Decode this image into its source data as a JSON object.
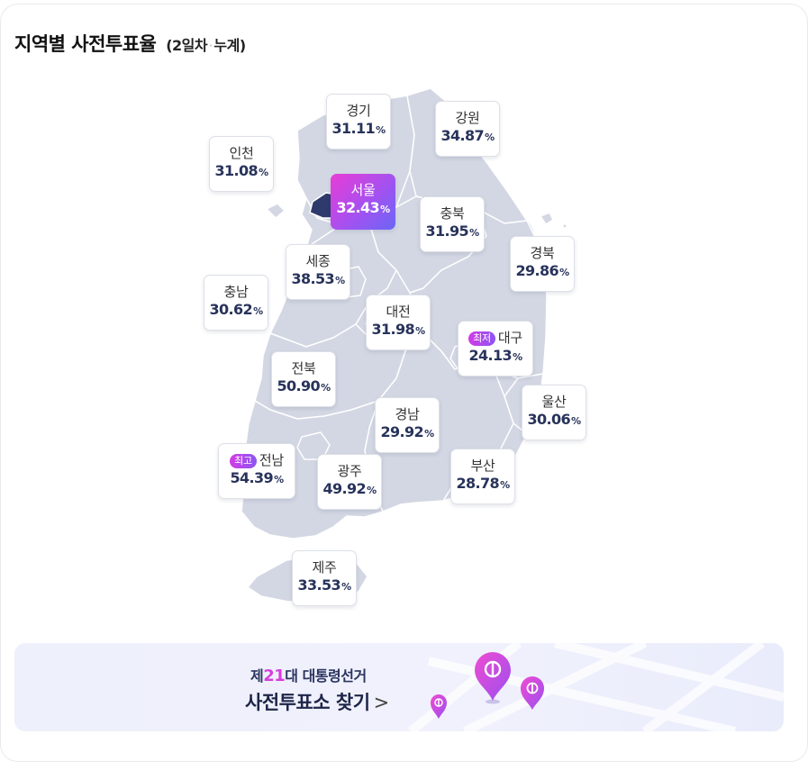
{
  "header": {
    "title": "지역별 사전투표율",
    "sub_prefix": "(2일차",
    "sub_sep": "·",
    "sub_suffix": "누계)"
  },
  "regions": [
    {
      "name": "경기",
      "value": "31.11",
      "unit": "%"
    },
    {
      "name": "강원",
      "value": "34.87",
      "unit": "%"
    },
    {
      "name": "인천",
      "value": "31.08",
      "unit": "%"
    },
    {
      "name": "서울",
      "value": "32.43",
      "unit": "%",
      "highlight": true
    },
    {
      "name": "충북",
      "value": "31.95",
      "unit": "%"
    },
    {
      "name": "경북",
      "value": "29.86",
      "unit": "%"
    },
    {
      "name": "세종",
      "value": "38.53",
      "unit": "%"
    },
    {
      "name": "충남",
      "value": "30.62",
      "unit": "%"
    },
    {
      "name": "대전",
      "value": "31.98",
      "unit": "%"
    },
    {
      "name": "대구",
      "value": "24.13",
      "unit": "%",
      "badge": "최저"
    },
    {
      "name": "전북",
      "value": "50.90",
      "unit": "%"
    },
    {
      "name": "울산",
      "value": "30.06",
      "unit": "%"
    },
    {
      "name": "경남",
      "value": "29.92",
      "unit": "%"
    },
    {
      "name": "전남",
      "value": "54.39",
      "unit": "%",
      "badge": "최고"
    },
    {
      "name": "광주",
      "value": "49.92",
      "unit": "%"
    },
    {
      "name": "부산",
      "value": "28.78",
      "unit": "%"
    },
    {
      "name": "제주",
      "value": "33.53",
      "unit": "%"
    }
  ],
  "banner": {
    "line1_prefix": "제",
    "line1_number": "21",
    "line1_suffix": "대 대통령선거",
    "line2": "사전투표소 찾기",
    "chevron": ">"
  },
  "colors": {
    "map_fill": "#d3d7e3",
    "map_border": "#ffffff",
    "seoul_fill": "#2e3a6b",
    "accent_start": "#e93cd6",
    "accent_end": "#6a66f6",
    "value_text": "#28335b"
  },
  "icons": {
    "pin": "ballot-pin-icon",
    "chevron": "chevron-right-icon"
  }
}
